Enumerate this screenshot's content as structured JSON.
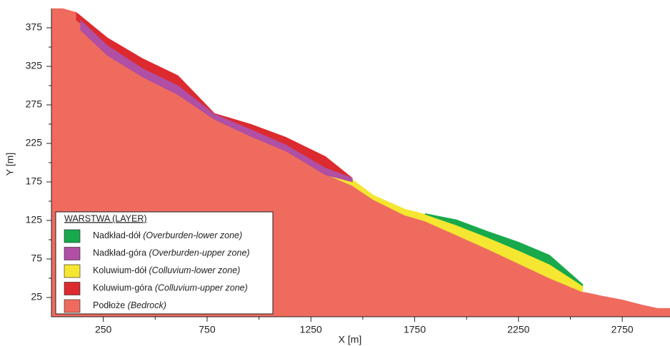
{
  "chart_data": {
    "type": "area",
    "xlabel": "X [m]",
    "ylabel": "Y [m]",
    "xlim": [
      0,
      2980
    ],
    "ylim": [
      0,
      400
    ],
    "xticks": [
      250,
      750,
      1250,
      1750,
      2250,
      2750
    ],
    "xminor": [
      500,
      1000,
      1500,
      2000,
      2500
    ],
    "yticks": [
      25,
      75,
      125,
      175,
      225,
      275,
      325,
      375
    ],
    "yminor": [
      50,
      100,
      150,
      200,
      250,
      300,
      350
    ],
    "legend_title": "WARSTWA (LAYER)",
    "legend_position": "lower left",
    "series": [
      {
        "name": "Nadkład-dół",
        "name_en": "(Overburden-lower zone)",
        "color": "#17a94b",
        "x": [
          1800,
          1950,
          2100,
          2250,
          2400,
          2560
        ],
        "values": [
          134,
          126,
          111,
          97,
          80,
          42
        ],
        "base": [
          133,
          119,
          103,
          86,
          68,
          40
        ]
      },
      {
        "name": "Nadkład-góra",
        "name_en": "(Overburden-upper zone)",
        "color": "#b04fa3",
        "x": [
          140,
          270,
          440,
          610,
          785,
          960,
          1130,
          1320,
          1450
        ],
        "values": [
          385,
          352,
          322,
          300,
          263,
          243,
          223,
          193,
          180
        ],
        "base": [
          372,
          339,
          311,
          288,
          256,
          234,
          215,
          184,
          175
        ]
      },
      {
        "name": "Koluwium-dół",
        "name_en": "(Colluvium-lower zone)",
        "color": "#f5e631",
        "x": [
          1330,
          1450,
          1550,
          1700,
          1800,
          1950,
          2100,
          2250,
          2400,
          2560
        ],
        "values": [
          186,
          178,
          158,
          140,
          133,
          119,
          103,
          86,
          68,
          40
        ],
        "base": [
          184,
          170,
          152,
          132,
          124,
          106,
          88,
          69,
          50,
          32
        ]
      },
      {
        "name": "Koluwium-góra",
        "name_en": "(Colluvium-upper zone)",
        "color": "#dc2a2f",
        "x": [
          120,
          270,
          440,
          610,
          785,
          960,
          1130,
          1320,
          1450
        ],
        "values": [
          395,
          362,
          335,
          313,
          264,
          250,
          233,
          208,
          180
        ],
        "base": [
          385,
          352,
          322,
          300,
          263,
          243,
          223,
          193,
          180
        ]
      },
      {
        "name": "Podłoże",
        "name_en": "(Bedrock)",
        "color": "#ef6b5e",
        "x": [
          0,
          55,
          120,
          150,
          270,
          440,
          610,
          785,
          960,
          1130,
          1330,
          1450,
          1550,
          1700,
          1800,
          1950,
          2100,
          2250,
          2400,
          2560,
          2600,
          2650,
          2750,
          2850,
          2920,
          2980
        ],
        "values": [
          400,
          400,
          395,
          372,
          339,
          311,
          288,
          256,
          234,
          215,
          184,
          170,
          152,
          132,
          124,
          106,
          88,
          69,
          50,
          32,
          30,
          27,
          22,
          15,
          11,
          11
        ]
      }
    ]
  }
}
